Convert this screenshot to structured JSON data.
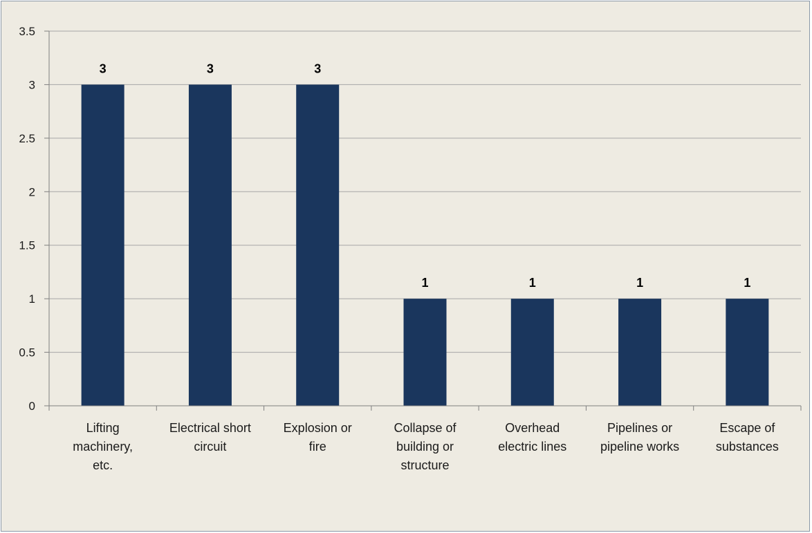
{
  "chart_data": {
    "type": "bar",
    "title": "",
    "xlabel": "",
    "ylabel": "",
    "categories": [
      [
        "Lifting",
        "machinery,",
        "etc."
      ],
      [
        "Electrical short",
        "circuit"
      ],
      [
        "Explosion or",
        "fire"
      ],
      [
        "Collapse of",
        "building or",
        "structure"
      ],
      [
        "Overhead",
        "electric lines"
      ],
      [
        "Pipelines or",
        "pipeline works"
      ],
      [
        "Escape of",
        "substances"
      ]
    ],
    "values": [
      3,
      3,
      3,
      1,
      1,
      1,
      1
    ],
    "ylim": [
      0,
      3.5
    ],
    "yticks": [
      "0",
      "0.5",
      "1",
      "1.5",
      "2",
      "2.5",
      "3",
      "3.5"
    ],
    "grid": true,
    "legend": "none",
    "bar_color": "#1a365d",
    "grid_color": "#a6a6a6",
    "background_color": "#eeebe2"
  }
}
